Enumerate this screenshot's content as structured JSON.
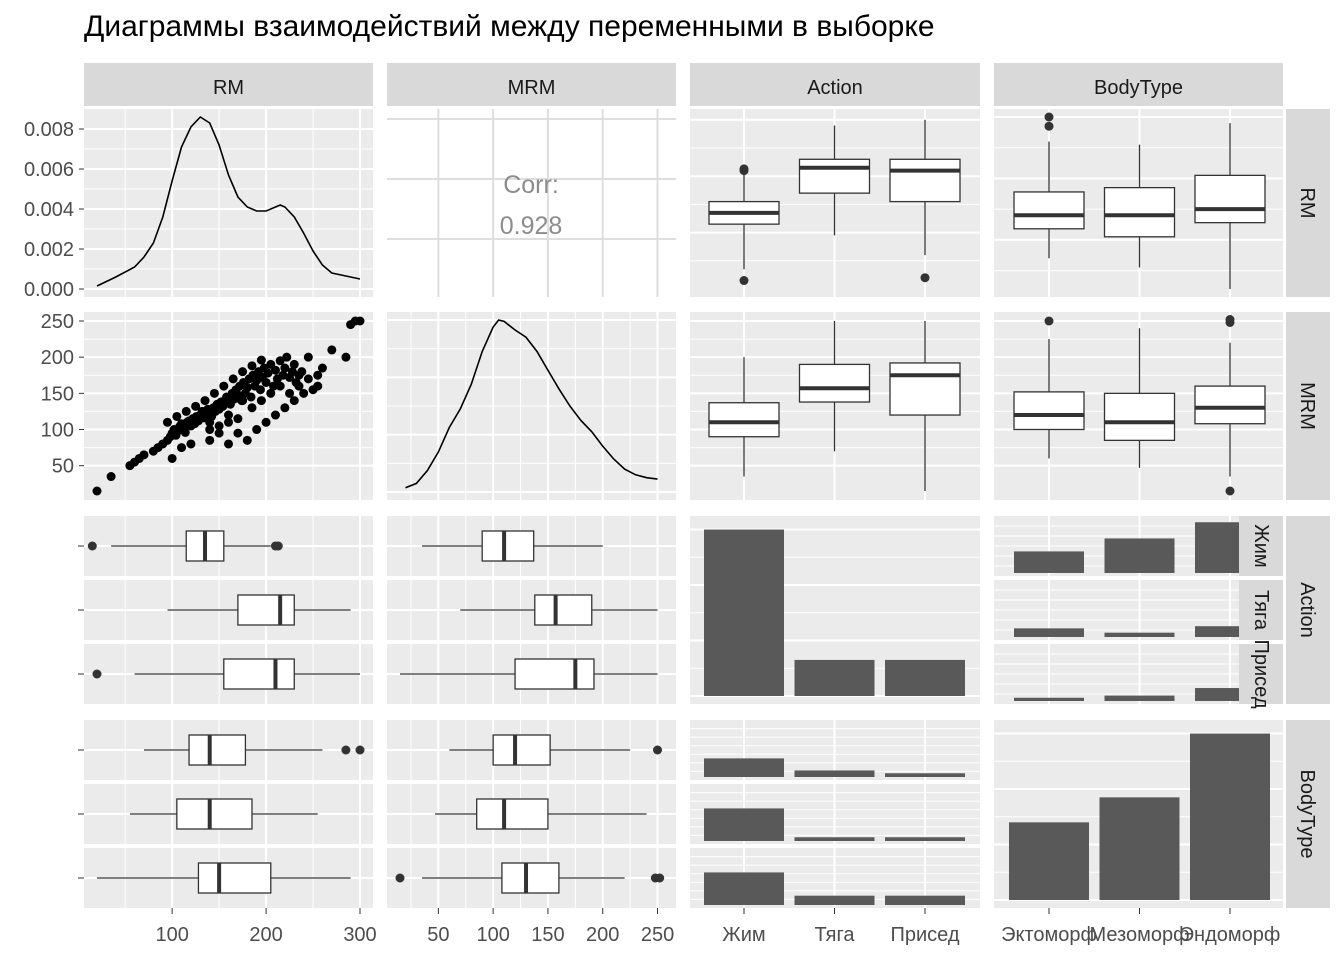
{
  "title": "Диаграммы взаимодействий между переменными в выборке",
  "variables": [
    "RM",
    "MRM",
    "Action",
    "BodyType"
  ],
  "colors": {
    "panel": "#ebebeb",
    "grid": "#ffffff",
    "strip": "#d9d9d9",
    "bar": "#595959",
    "ink": "#000000",
    "axis_text": "#4d4d4d",
    "corr_text": "#8c8c8c"
  },
  "chart_data": {
    "type": "pairs",
    "density": {
      "RM": {
        "x_range": [
          20,
          300
        ],
        "ylim": [
          0,
          0.0086
        ],
        "yticks": [
          0.0,
          0.002,
          0.004,
          0.006,
          0.008
        ],
        "ytick_labels": [
          "0.000",
          "0.002",
          "0.004",
          "0.006",
          "0.008"
        ],
        "x": [
          20,
          40,
          60,
          70,
          80,
          90,
          100,
          110,
          120,
          130,
          140,
          150,
          160,
          170,
          180,
          190,
          200,
          210,
          215,
          220,
          230,
          240,
          250,
          260,
          270,
          280,
          290,
          300
        ],
        "y": [
          0.00015,
          0.0006,
          0.0011,
          0.0016,
          0.0023,
          0.0036,
          0.0054,
          0.0071,
          0.0081,
          0.0086,
          0.0083,
          0.0072,
          0.0057,
          0.0046,
          0.0041,
          0.0039,
          0.0039,
          0.0041,
          0.0042,
          0.0041,
          0.0036,
          0.0028,
          0.0019,
          0.0012,
          0.0008,
          0.0007,
          0.0006,
          0.0005
        ]
      },
      "MRM": {
        "x_range": [
          15,
          255
        ],
        "ylim": [
          0,
          0.012
        ],
        "x": [
          20,
          30,
          40,
          50,
          60,
          70,
          80,
          90,
          100,
          105,
          110,
          120,
          130,
          140,
          150,
          160,
          170,
          180,
          190,
          200,
          210,
          220,
          230,
          240,
          250
        ],
        "y": [
          0.0003,
          0.0006,
          0.0015,
          0.0028,
          0.0045,
          0.0058,
          0.0075,
          0.0098,
          0.0115,
          0.012,
          0.0119,
          0.0113,
          0.0108,
          0.0098,
          0.0085,
          0.0072,
          0.006,
          0.005,
          0.0042,
          0.0032,
          0.0023,
          0.0016,
          0.0012,
          0.001,
          0.0009
        ]
      }
    },
    "correlation": {
      "label": "Corr:",
      "value": "0.928"
    },
    "scatter": {
      "xlabel": "RM",
      "ylabel": "MRM",
      "points": [
        [
          20,
          15
        ],
        [
          35,
          35
        ],
        [
          55,
          50
        ],
        [
          60,
          55
        ],
        [
          65,
          60
        ],
        [
          70,
          65
        ],
        [
          80,
          70
        ],
        [
          85,
          75
        ],
        [
          90,
          80
        ],
        [
          95,
          85
        ],
        [
          98,
          90
        ],
        [
          100,
          95
        ],
        [
          102,
          100
        ],
        [
          104,
          92
        ],
        [
          106,
          98
        ],
        [
          108,
          104
        ],
        [
          110,
          108
        ],
        [
          112,
          100
        ],
        [
          114,
          96
        ],
        [
          116,
          110
        ],
        [
          118,
          112
        ],
        [
          120,
          105
        ],
        [
          122,
          115
        ],
        [
          124,
          108
        ],
        [
          126,
          118
        ],
        [
          128,
          112
        ],
        [
          130,
          120
        ],
        [
          132,
          125
        ],
        [
          134,
          116
        ],
        [
          136,
          122
        ],
        [
          138,
          128
        ],
        [
          140,
          110
        ],
        [
          142,
          118
        ],
        [
          144,
          130
        ],
        [
          146,
          125
        ],
        [
          148,
          135
        ],
        [
          150,
          128
        ],
        [
          152,
          138
        ],
        [
          154,
          132
        ],
        [
          156,
          140
        ],
        [
          158,
          145
        ],
        [
          160,
          120
        ],
        [
          162,
          135
        ],
        [
          164,
          150
        ],
        [
          166,
          142
        ],
        [
          168,
          155
        ],
        [
          170,
          148
        ],
        [
          172,
          160
        ],
        [
          174,
          140
        ],
        [
          176,
          165
        ],
        [
          178,
          150
        ],
        [
          180,
          158
        ],
        [
          182,
          170
        ],
        [
          184,
          145
        ],
        [
          186,
          175
        ],
        [
          188,
          160
        ],
        [
          190,
          168
        ],
        [
          192,
          180
        ],
        [
          194,
          155
        ],
        [
          196,
          172
        ],
        [
          198,
          185
        ],
        [
          200,
          165
        ],
        [
          202,
          178
        ],
        [
          205,
          190
        ],
        [
          208,
          160
        ],
        [
          210,
          182
        ],
        [
          212,
          170
        ],
        [
          215,
          195
        ],
        [
          218,
          175
        ],
        [
          220,
          185
        ],
        [
          222,
          200
        ],
        [
          225,
          172
        ],
        [
          228,
          180
        ],
        [
          230,
          190
        ],
        [
          232,
          165
        ],
        [
          235,
          175
        ],
        [
          238,
          180
        ],
        [
          240,
          150
        ],
        [
          245,
          170
        ],
        [
          250,
          155
        ],
        [
          255,
          175
        ],
        [
          260,
          185
        ],
        [
          270,
          210
        ],
        [
          285,
          200
        ],
        [
          290,
          245
        ],
        [
          300,
          250
        ],
        [
          295,
          250
        ],
        [
          100,
          60
        ],
        [
          110,
          75
        ],
        [
          120,
          80
        ],
        [
          140,
          85
        ],
        [
          150,
          95
        ],
        [
          160,
          80
        ],
        [
          170,
          95
        ],
        [
          180,
          85
        ],
        [
          190,
          100
        ],
        [
          200,
          110
        ],
        [
          210,
          120
        ],
        [
          220,
          130
        ],
        [
          230,
          140
        ],
        [
          95,
          110
        ],
        [
          105,
          118
        ],
        [
          115,
          125
        ],
        [
          125,
          132
        ],
        [
          135,
          140
        ],
        [
          145,
          150
        ],
        [
          155,
          160
        ],
        [
          165,
          170
        ],
        [
          175,
          180
        ],
        [
          185,
          188
        ],
        [
          195,
          196
        ],
        [
          140,
          100
        ],
        [
          150,
          105
        ],
        [
          160,
          110
        ],
        [
          170,
          115
        ],
        [
          175,
          140
        ],
        [
          185,
          130
        ],
        [
          195,
          140
        ],
        [
          205,
          150
        ],
        [
          215,
          160
        ],
        [
          225,
          150
        ],
        [
          235,
          160
        ],
        [
          245,
          200
        ],
        [
          255,
          160
        ]
      ]
    },
    "boxplots_by_action": {
      "groups": [
        "Жим",
        "Тяга",
        "Присед"
      ],
      "RM": [
        {
          "whisker_lo": 35,
          "q1": 115,
          "median": 135,
          "q3": 155,
          "whisker_hi": 205,
          "outliers": [
            15,
            210,
            213
          ]
        },
        {
          "whisker_lo": 95,
          "q1": 170,
          "median": 215,
          "q3": 230,
          "whisker_hi": 290,
          "outliers": []
        },
        {
          "whisker_lo": 60,
          "q1": 155,
          "median": 210,
          "q3": 230,
          "whisker_hi": 300,
          "outliers": [
            20
          ]
        }
      ],
      "MRM": [
        {
          "whisker_lo": 35,
          "q1": 90,
          "median": 110,
          "q3": 137,
          "whisker_hi": 200,
          "outliers": []
        },
        {
          "whisker_lo": 70,
          "q1": 138,
          "median": 157,
          "q3": 190,
          "whisker_hi": 250,
          "outliers": []
        },
        {
          "whisker_lo": 15,
          "q1": 120,
          "median": 175,
          "q3": 192,
          "whisker_hi": 250,
          "outliers": []
        }
      ]
    },
    "boxplots_by_bodytype": {
      "groups": [
        "Эктоморф",
        "Мезоморф",
        "Эндоморф"
      ],
      "RM": [
        {
          "whisker_lo": 70,
          "q1": 118,
          "median": 140,
          "q3": 178,
          "whisker_hi": 260,
          "outliers": [
            285,
            300
          ]
        },
        {
          "whisker_lo": 55,
          "q1": 105,
          "median": 140,
          "q3": 185,
          "whisker_hi": 255,
          "outliers": []
        },
        {
          "whisker_lo": 20,
          "q1": 128,
          "median": 150,
          "q3": 205,
          "whisker_hi": 290,
          "outliers": []
        }
      ],
      "MRM": [
        {
          "whisker_lo": 60,
          "q1": 100,
          "median": 120,
          "q3": 152,
          "whisker_hi": 225,
          "outliers": [
            250
          ]
        },
        {
          "whisker_lo": 47,
          "q1": 85,
          "median": 110,
          "q3": 150,
          "whisker_hi": 240,
          "outliers": []
        },
        {
          "whisker_lo": 35,
          "q1": 108,
          "median": 130,
          "q3": 160,
          "whisker_hi": 220,
          "outliers": [
            15,
            248,
            252
          ]
        }
      ]
    },
    "action_bars": {
      "categories": [
        "Жим",
        "Тяга",
        "Присед"
      ],
      "values": [
        60,
        13,
        13
      ]
    },
    "bodytype_bars": {
      "categories": [
        "Эктоморф",
        "Мезоморф",
        "Эндоморф"
      ],
      "values": [
        28,
        37,
        60
      ]
    },
    "action_by_bodytype": {
      "rows": [
        "Жим",
        "Тяга",
        "Присед"
      ],
      "cols": [
        "Эктоморф",
        "Мезоморф",
        "Эндоморф"
      ],
      "values": [
        [
          20,
          32,
          47
        ],
        [
          8,
          4,
          10
        ],
        [
          3,
          5,
          12
        ]
      ]
    },
    "bodytype_by_action": {
      "rows": [
        "Эктоморф",
        "Мезоморф",
        "Эндоморф"
      ],
      "cols": [
        "Жим",
        "Тяга",
        "Присед"
      ],
      "values": [
        [
          20,
          7,
          4
        ],
        [
          35,
          4,
          4
        ],
        [
          35,
          10,
          10
        ]
      ]
    },
    "axis": {
      "RM_ticks": [
        100,
        200,
        300
      ],
      "RM_tick_labels": [
        "100",
        "200",
        "300"
      ],
      "MRM_ticks": [
        50,
        100,
        150,
        200,
        250
      ],
      "MRM_tick_labels": [
        "50",
        "100",
        "150",
        "200",
        "250"
      ],
      "MRM_y_ticks": [
        50,
        100,
        150,
        200,
        250
      ],
      "MRM_y_tick_labels": [
        "50",
        "100",
        "150",
        "200",
        "250"
      ],
      "action_labels": [
        "Жим",
        "Тяга",
        "Присед"
      ],
      "bodytype_labels": [
        "Эктоморф",
        "Мезоморф",
        "Эндоморф"
      ]
    }
  }
}
